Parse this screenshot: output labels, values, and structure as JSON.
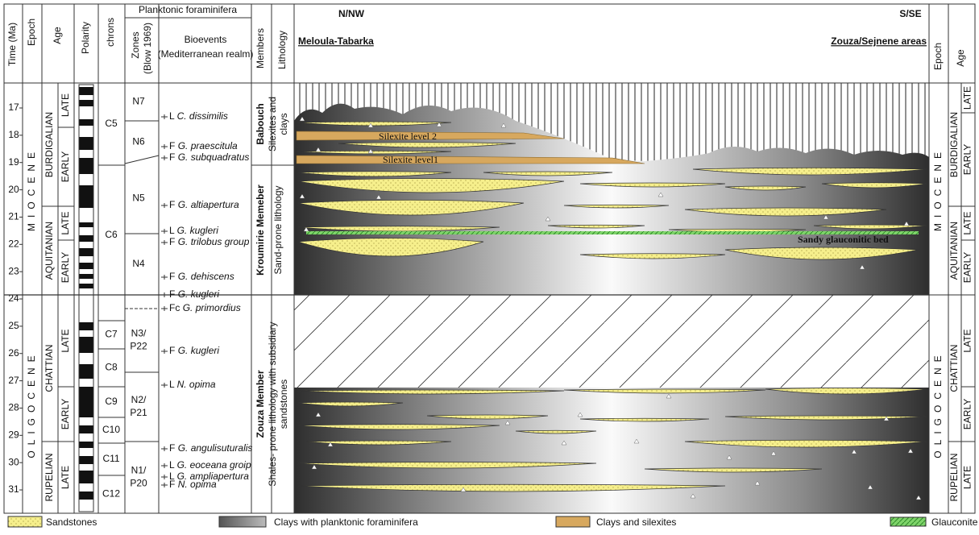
{
  "header": {
    "time": "Time (Ma)",
    "epoch": "Epoch",
    "age": "Age",
    "polarity": "Polarity",
    "chrons": "chrons",
    "planktonic": "Planktonic foraminifera",
    "zones": [
      "Zones",
      "(Blow 1969)"
    ],
    "bioevents": "Bioevents",
    "realm": "(Mediterranean realm)",
    "members": "Members",
    "lithology": "Lithology",
    "epoch_right": "Epoch",
    "age_right": "Age"
  },
  "section": {
    "left_direction": "N/NW",
    "right_direction": "S/SE",
    "left_area": "Meloula-Tabarka",
    "right_area": "Zouza/Sejnene areas",
    "silexite_2": "Silexite level 2",
    "silexite_1": "Silexite level1",
    "glauconitic_bed": "Sandy glauconitic bed"
  },
  "time_ticks": [
    17,
    18,
    19,
    20,
    21,
    22,
    23,
    24,
    25,
    26,
    27,
    28,
    29,
    30,
    31
  ],
  "epochs": [
    "MIOCENE",
    "OLIGOCENE"
  ],
  "ages_left": [
    {
      "name": "BURDIGALIAN",
      "sub": [
        "LATE",
        "EARLY"
      ]
    },
    {
      "name": "AQUITANIAN",
      "sub": [
        "LATE",
        "EARLY"
      ]
    },
    {
      "name": "CHATTIAN",
      "sub": [
        "LATE",
        "EARLY"
      ]
    },
    {
      "name": "RUPELIAN",
      "sub": [
        "LATE"
      ]
    }
  ],
  "ages_right": [
    {
      "name": "BURDIGALIAN",
      "sub": [
        "LATE",
        "EARLY"
      ]
    },
    {
      "name": "AQUITANIAN",
      "sub": [
        "LATE",
        "EARLY"
      ]
    },
    {
      "name": "CHATTIAN",
      "sub": [
        "LATE",
        "EARLY"
      ]
    },
    {
      "name": "RUPELIAN",
      "sub": [
        "LATE"
      ]
    }
  ],
  "chrons": [
    "C5",
    "C6",
    "C7",
    "C8",
    "C9",
    "C10",
    "C11",
    "C12"
  ],
  "zones": [
    [
      "N7"
    ],
    [
      "N6"
    ],
    [
      "N5"
    ],
    [
      "N4"
    ],
    [
      "N3/",
      "P22"
    ],
    [
      "N2/",
      "P21"
    ],
    [
      "N1/",
      "P20"
    ]
  ],
  "bioevents": [
    {
      "marker": "L",
      "taxon": "C. dissimilis"
    },
    {
      "marker": "F",
      "taxon": "G. praescitula"
    },
    {
      "marker": "F",
      "taxon": "G. subquadratus"
    },
    {
      "marker": "F",
      "taxon": "G. altiapertura"
    },
    {
      "marker": "L",
      "taxon": "G. kugleri"
    },
    {
      "marker": "F",
      "taxon": "G. trilobus group"
    },
    {
      "marker": "F",
      "taxon": "G. dehiscens"
    },
    {
      "marker": "F",
      "taxon": "G. kugleri"
    },
    {
      "marker": "Fc",
      "taxon": "G. primordius"
    },
    {
      "marker": "F",
      "taxon": "G. kugleri"
    },
    {
      "marker": "L",
      "taxon": "N. opima"
    },
    {
      "marker": "F",
      "taxon": "G. angulisuturalis"
    },
    {
      "marker": "L",
      "taxon": "G. eoceana groip"
    },
    {
      "marker": "L",
      "taxon": "G. ampliapertura"
    },
    {
      "marker": "F",
      "taxon": "N. opima"
    }
  ],
  "members": [
    {
      "name": "Babouch",
      "lithology": [
        "Silexites and",
        "clays"
      ]
    },
    {
      "name": "Kroumirie Memeber",
      "lithology": [
        "Sand-prone lithology"
      ]
    },
    {
      "name": "Zouza Member",
      "lithology": [
        "Shales- prone lithology with subsidiary",
        "sandstones"
      ]
    }
  ],
  "legend": [
    "Sandstones",
    "Clays with planktonic foraminifera",
    "Clays and silexites",
    "Glauconite"
  ]
}
